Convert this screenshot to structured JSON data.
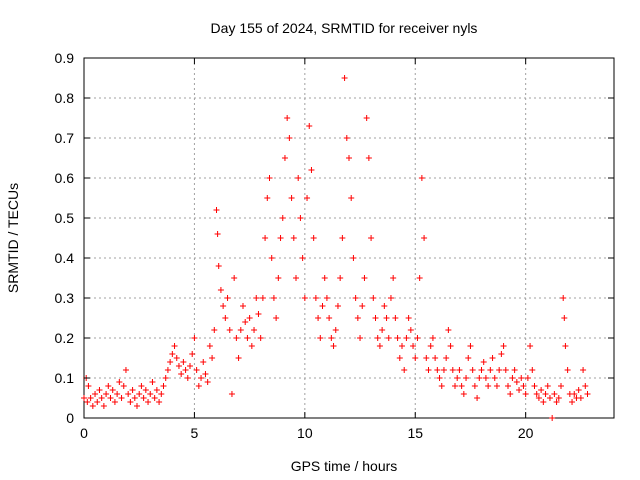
{
  "chart_data": {
    "type": "scatter",
    "title": "Day 155 of 2024, SRMTID for receiver nyls",
    "xlabel": "GPS time / hours",
    "ylabel": "SRMTID / TECUs",
    "xlim": [
      0,
      24
    ],
    "ylim": [
      0,
      0.9
    ],
    "xticks": [
      0,
      5,
      10,
      15,
      20
    ],
    "yticks": [
      0,
      0.1,
      0.2,
      0.3,
      0.4,
      0.5,
      0.6,
      0.7,
      0.8,
      0.9
    ],
    "grid": true,
    "marker": "plus",
    "color": "#ff0000",
    "series": [
      {
        "name": "SRMTID",
        "points": [
          [
            0.0,
            0.05
          ],
          [
            0.1,
            0.1
          ],
          [
            0.15,
            0.04
          ],
          [
            0.2,
            0.08
          ],
          [
            0.3,
            0.05
          ],
          [
            0.4,
            0.03
          ],
          [
            0.5,
            0.06
          ],
          [
            0.6,
            0.04
          ],
          [
            0.7,
            0.07
          ],
          [
            0.8,
            0.05
          ],
          [
            0.9,
            0.03
          ],
          [
            1.0,
            0.06
          ],
          [
            1.1,
            0.08
          ],
          [
            1.2,
            0.05
          ],
          [
            1.3,
            0.07
          ],
          [
            1.4,
            0.04
          ],
          [
            1.5,
            0.06
          ],
          [
            1.6,
            0.09
          ],
          [
            1.7,
            0.05
          ],
          [
            1.8,
            0.08
          ],
          [
            1.9,
            0.12
          ],
          [
            2.0,
            0.06
          ],
          [
            2.1,
            0.04
          ],
          [
            2.2,
            0.07
          ],
          [
            2.3,
            0.05
          ],
          [
            2.4,
            0.03
          ],
          [
            2.5,
            0.06
          ],
          [
            2.6,
            0.08
          ],
          [
            2.7,
            0.05
          ],
          [
            2.8,
            0.07
          ],
          [
            2.9,
            0.04
          ],
          [
            3.0,
            0.06
          ],
          [
            3.1,
            0.09
          ],
          [
            3.2,
            0.05
          ],
          [
            3.3,
            0.07
          ],
          [
            3.4,
            0.04
          ],
          [
            3.5,
            0.06
          ],
          [
            3.6,
            0.08
          ],
          [
            3.7,
            0.1
          ],
          [
            3.8,
            0.12
          ],
          [
            3.9,
            0.14
          ],
          [
            4.0,
            0.16
          ],
          [
            4.1,
            0.18
          ],
          [
            4.2,
            0.15
          ],
          [
            4.3,
            0.13
          ],
          [
            4.4,
            0.11
          ],
          [
            4.5,
            0.14
          ],
          [
            4.6,
            0.12
          ],
          [
            4.7,
            0.1
          ],
          [
            4.8,
            0.13
          ],
          [
            4.9,
            0.16
          ],
          [
            5.0,
            0.2
          ],
          [
            5.1,
            0.12
          ],
          [
            5.2,
            0.08
          ],
          [
            5.3,
            0.1
          ],
          [
            5.4,
            0.14
          ],
          [
            5.5,
            0.11
          ],
          [
            5.6,
            0.09
          ],
          [
            5.7,
            0.18
          ],
          [
            5.8,
            0.15
          ],
          [
            5.9,
            0.22
          ],
          [
            6.0,
            0.52
          ],
          [
            6.05,
            0.46
          ],
          [
            6.1,
            0.38
          ],
          [
            6.2,
            0.32
          ],
          [
            6.3,
            0.28
          ],
          [
            6.4,
            0.25
          ],
          [
            6.5,
            0.3
          ],
          [
            6.6,
            0.22
          ],
          [
            6.7,
            0.06
          ],
          [
            6.8,
            0.35
          ],
          [
            6.9,
            0.2
          ],
          [
            7.0,
            0.15
          ],
          [
            7.1,
            0.22
          ],
          [
            7.2,
            0.28
          ],
          [
            7.3,
            0.24
          ],
          [
            7.4,
            0.2
          ],
          [
            7.5,
            0.25
          ],
          [
            7.6,
            0.18
          ],
          [
            7.7,
            0.22
          ],
          [
            7.8,
            0.3
          ],
          [
            7.9,
            0.26
          ],
          [
            8.0,
            0.2
          ],
          [
            8.1,
            0.3
          ],
          [
            8.2,
            0.45
          ],
          [
            8.3,
            0.55
          ],
          [
            8.4,
            0.6
          ],
          [
            8.5,
            0.4
          ],
          [
            8.6,
            0.3
          ],
          [
            8.7,
            0.25
          ],
          [
            8.8,
            0.35
          ],
          [
            8.9,
            0.45
          ],
          [
            9.0,
            0.5
          ],
          [
            9.1,
            0.65
          ],
          [
            9.2,
            0.75
          ],
          [
            9.3,
            0.7
          ],
          [
            9.4,
            0.55
          ],
          [
            9.5,
            0.45
          ],
          [
            9.6,
            0.35
          ],
          [
            9.7,
            0.6
          ],
          [
            9.8,
            0.5
          ],
          [
            9.9,
            0.4
          ],
          [
            10.0,
            0.3
          ],
          [
            10.1,
            0.55
          ],
          [
            10.2,
            0.73
          ],
          [
            10.3,
            0.62
          ],
          [
            10.4,
            0.45
          ],
          [
            10.5,
            0.3
          ],
          [
            10.6,
            0.25
          ],
          [
            10.7,
            0.2
          ],
          [
            10.8,
            0.28
          ],
          [
            10.9,
            0.35
          ],
          [
            11.0,
            0.3
          ],
          [
            11.1,
            0.25
          ],
          [
            11.2,
            0.2
          ],
          [
            11.3,
            0.18
          ],
          [
            11.4,
            0.22
          ],
          [
            11.5,
            0.28
          ],
          [
            11.6,
            0.35
          ],
          [
            11.7,
            0.45
          ],
          [
            11.8,
            0.85
          ],
          [
            11.9,
            0.7
          ],
          [
            12.0,
            0.65
          ],
          [
            12.1,
            0.55
          ],
          [
            12.2,
            0.4
          ],
          [
            12.3,
            0.3
          ],
          [
            12.4,
            0.25
          ],
          [
            12.5,
            0.2
          ],
          [
            12.6,
            0.28
          ],
          [
            12.7,
            0.35
          ],
          [
            12.8,
            0.75
          ],
          [
            12.9,
            0.65
          ],
          [
            13.0,
            0.45
          ],
          [
            13.1,
            0.3
          ],
          [
            13.2,
            0.25
          ],
          [
            13.3,
            0.2
          ],
          [
            13.4,
            0.18
          ],
          [
            13.5,
            0.22
          ],
          [
            13.6,
            0.28
          ],
          [
            13.7,
            0.25
          ],
          [
            13.8,
            0.2
          ],
          [
            13.9,
            0.3
          ],
          [
            14.0,
            0.35
          ],
          [
            14.1,
            0.25
          ],
          [
            14.2,
            0.2
          ],
          [
            14.3,
            0.15
          ],
          [
            14.4,
            0.18
          ],
          [
            14.5,
            0.12
          ],
          [
            14.6,
            0.2
          ],
          [
            14.7,
            0.25
          ],
          [
            14.8,
            0.22
          ],
          [
            14.9,
            0.18
          ],
          [
            15.0,
            0.15
          ],
          [
            15.1,
            0.2
          ],
          [
            15.2,
            0.35
          ],
          [
            15.3,
            0.6
          ],
          [
            15.4,
            0.45
          ],
          [
            15.5,
            0.15
          ],
          [
            15.6,
            0.12
          ],
          [
            15.7,
            0.18
          ],
          [
            15.8,
            0.2
          ],
          [
            15.9,
            0.15
          ],
          [
            16.0,
            0.12
          ],
          [
            16.1,
            0.1
          ],
          [
            16.2,
            0.08
          ],
          [
            16.3,
            0.12
          ],
          [
            16.4,
            0.15
          ],
          [
            16.5,
            0.22
          ],
          [
            16.6,
            0.18
          ],
          [
            16.7,
            0.12
          ],
          [
            16.8,
            0.08
          ],
          [
            16.9,
            0.1
          ],
          [
            17.0,
            0.12
          ],
          [
            17.1,
            0.08
          ],
          [
            17.2,
            0.06
          ],
          [
            17.3,
            0.1
          ],
          [
            17.4,
            0.15
          ],
          [
            17.5,
            0.18
          ],
          [
            17.6,
            0.12
          ],
          [
            17.7,
            0.08
          ],
          [
            17.8,
            0.05
          ],
          [
            17.9,
            0.1
          ],
          [
            18.0,
            0.12
          ],
          [
            18.1,
            0.14
          ],
          [
            18.2,
            0.1
          ],
          [
            18.3,
            0.08
          ],
          [
            18.4,
            0.12
          ],
          [
            18.5,
            0.15
          ],
          [
            18.6,
            0.1
          ],
          [
            18.7,
            0.08
          ],
          [
            18.8,
            0.12
          ],
          [
            18.9,
            0.16
          ],
          [
            19.0,
            0.18
          ],
          [
            19.1,
            0.12
          ],
          [
            19.2,
            0.08
          ],
          [
            19.3,
            0.06
          ],
          [
            19.4,
            0.1
          ],
          [
            19.5,
            0.12
          ],
          [
            19.6,
            0.09
          ],
          [
            19.7,
            0.07
          ],
          [
            19.8,
            0.1
          ],
          [
            19.9,
            0.08
          ],
          [
            20.0,
            0.06
          ],
          [
            20.1,
            0.1
          ],
          [
            20.2,
            0.18
          ],
          [
            20.3,
            0.12
          ],
          [
            20.4,
            0.08
          ],
          [
            20.5,
            0.06
          ],
          [
            20.6,
            0.05
          ],
          [
            20.7,
            0.07
          ],
          [
            20.8,
            0.04
          ],
          [
            20.9,
            0.06
          ],
          [
            21.0,
            0.08
          ],
          [
            21.1,
            0.05
          ],
          [
            21.2,
            0.0
          ],
          [
            21.3,
            0.06
          ],
          [
            21.4,
            0.04
          ],
          [
            21.5,
            0.05
          ],
          [
            21.6,
            0.08
          ],
          [
            21.7,
            0.3
          ],
          [
            21.75,
            0.25
          ],
          [
            21.8,
            0.18
          ],
          [
            21.9,
            0.12
          ],
          [
            22.0,
            0.06
          ],
          [
            22.1,
            0.04
          ],
          [
            22.2,
            0.06
          ],
          [
            22.3,
            0.05
          ],
          [
            22.4,
            0.07
          ],
          [
            22.5,
            0.05
          ],
          [
            22.6,
            0.12
          ],
          [
            22.7,
            0.08
          ],
          [
            22.8,
            0.06
          ]
        ]
      }
    ]
  }
}
